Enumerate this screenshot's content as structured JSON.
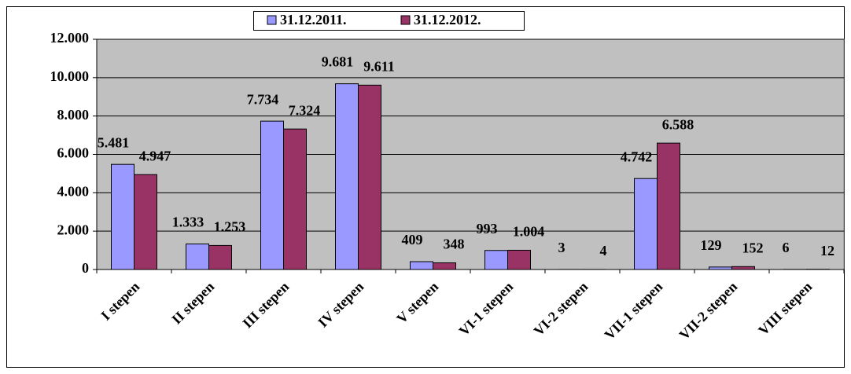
{
  "chart_data": {
    "type": "bar",
    "categories": [
      "I stepen",
      "II stepen",
      "III stepen",
      "IV stepen",
      "V stepen",
      "VI-1 stepen",
      "VI-2 stepen",
      "VII-1 stepen",
      "VII-2 stepen",
      "VIII stepen"
    ],
    "series": [
      {
        "name": "31.12.2011.",
        "color": "#9999ff",
        "values": [
          5481,
          1333,
          7734,
          9681,
          409,
          993,
          3,
          4742,
          129,
          6
        ],
        "value_labels": [
          "5.481",
          "1.333",
          "7.734",
          "9.681",
          "409",
          "993",
          "3",
          "4.742",
          "129",
          "6"
        ]
      },
      {
        "name": "31.12.2012.",
        "color": "#993366",
        "values": [
          4947,
          1253,
          7324,
          9611,
          348,
          1004,
          4,
          6588,
          152,
          12
        ],
        "value_labels": [
          "4.947",
          "1.253",
          "7.324",
          "9.611",
          "348",
          "1.004",
          "4",
          "6.588",
          "152",
          "12"
        ]
      }
    ],
    "ylim": [
      0,
      12000
    ],
    "yticks": [
      0,
      {
        "value": 2000,
        "label": "2.000"
      },
      {
        "value": 4000,
        "label": "4.000"
      },
      {
        "value": 6000,
        "label": "6.000"
      },
      {
        "value": 8000,
        "label": "8.000"
      },
      {
        "value": 10000,
        "label": "10.000"
      },
      {
        "value": 12000,
        "label": "12.000"
      }
    ],
    "grid": true,
    "legend": "top"
  }
}
